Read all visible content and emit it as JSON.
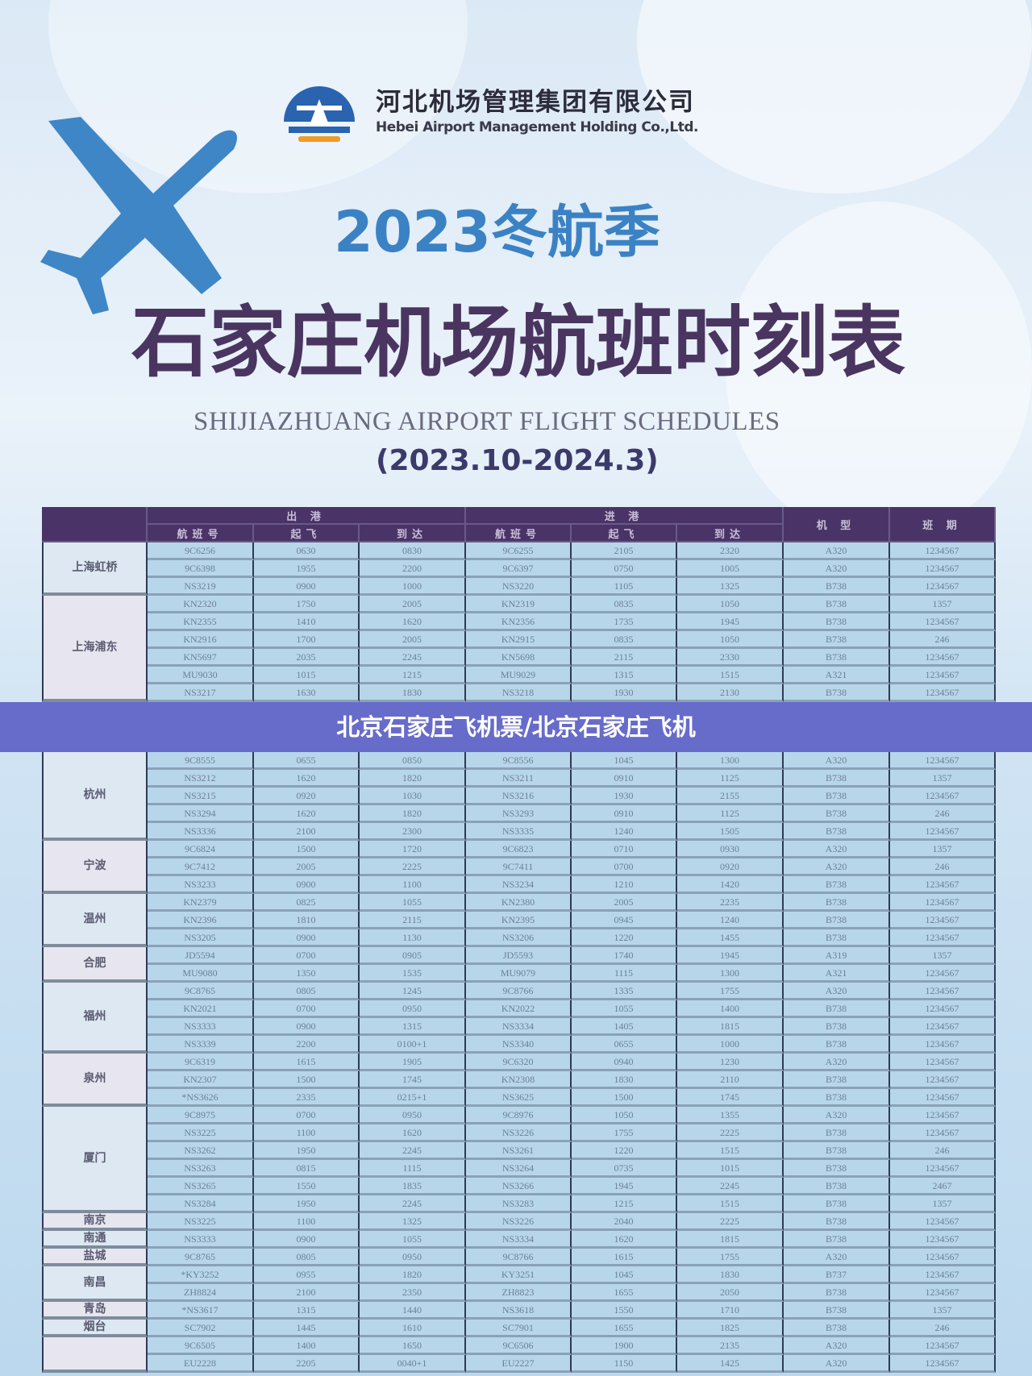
{
  "header": {
    "company_cn": "河北机场管理集团有限公司",
    "company_en": "Hebei Airport Management Holding Co.,Ltd.",
    "season": "2023冬航季",
    "title": "石家庄机场航班时刻表",
    "subtitle": "SHIJIAZHUANG AIRPORT FLIGHT SCHEDULES",
    "period": "(2023.10-2024.3)"
  },
  "banner": "北京石家庄飞机票/北京石家庄飞机",
  "colors": {
    "header": "#4a3366",
    "cell": "#b8d6ea",
    "accent": "#3b82c4",
    "banner": "#585ac4",
    "title": "#4a3560"
  },
  "table": {
    "group_out": "出 港",
    "group_in": "进 港",
    "columns": [
      "航班号",
      "起飞",
      "到达",
      "航班号",
      "起飞",
      "到达"
    ],
    "col_type": "机 型",
    "col_days": "班 期",
    "groups": [
      {
        "city": "上海虹桥",
        "rows": [
          [
            "9C6256",
            "0630",
            "0830",
            "9C6255",
            "2105",
            "2320",
            "A320",
            "1234567"
          ],
          [
            "9C6398",
            "1955",
            "2200",
            "9C6397",
            "0750",
            "1005",
            "A320",
            "1234567"
          ],
          [
            "NS3219",
            "0900",
            "1000",
            "NS3220",
            "1105",
            "1325",
            "B738",
            "1234567"
          ]
        ]
      },
      {
        "city": "上海浦东",
        "rows": [
          [
            "KN2320",
            "1750",
            "2005",
            "KN2319",
            "0835",
            "1050",
            "B738",
            "1357"
          ],
          [
            "KN2355",
            "1410",
            "1620",
            "KN2356",
            "1735",
            "1945",
            "B738",
            "1234567"
          ],
          [
            "KN2916",
            "1700",
            "2005",
            "KN2915",
            "0835",
            "1050",
            "B738",
            "246"
          ],
          [
            "KN5697",
            "2035",
            "2245",
            "KN5698",
            "2115",
            "2330",
            "B738",
            "1234567"
          ],
          [
            "MU9030",
            "1015",
            "1215",
            "MU9029",
            "1315",
            "1515",
            "A321",
            "1234567"
          ],
          [
            "NS3217",
            "1630",
            "1830",
            "NS3218",
            "1930",
            "2130",
            "B738",
            "1234567"
          ]
        ]
      },
      {
        "city": "杭州",
        "rows": [
          [
            "9C8555",
            "0655",
            "0850",
            "9C8556",
            "1045",
            "1300",
            "A320",
            "1234567"
          ],
          [
            "NS3212",
            "1620",
            "1820",
            "NS3211",
            "0910",
            "1125",
            "B738",
            "1357"
          ],
          [
            "NS3215",
            "0920",
            "1030",
            "NS3216",
            "1930",
            "2155",
            "B738",
            "1234567"
          ],
          [
            "NS3294",
            "1620",
            "1820",
            "NS3293",
            "0910",
            "1125",
            "B738",
            "246"
          ],
          [
            "NS3336",
            "2100",
            "2300",
            "NS3335",
            "1240",
            "1505",
            "B738",
            "1234567"
          ]
        ]
      },
      {
        "city": "宁波",
        "rows": [
          [
            "9C6824",
            "1500",
            "1720",
            "9C6823",
            "0710",
            "0930",
            "A320",
            "1357"
          ],
          [
            "9C7412",
            "2005",
            "2225",
            "9C7411",
            "0700",
            "0920",
            "A320",
            "246"
          ],
          [
            "NS3233",
            "0900",
            "1100",
            "NS3234",
            "1210",
            "1420",
            "B738",
            "1234567"
          ]
        ]
      },
      {
        "city": "温州",
        "rows": [
          [
            "KN2379",
            "0825",
            "1055",
            "KN2380",
            "2005",
            "2235",
            "B738",
            "1234567"
          ],
          [
            "KN2396",
            "1810",
            "2115",
            "KN2395",
            "0945",
            "1240",
            "B738",
            "1234567"
          ],
          [
            "NS3205",
            "0900",
            "1130",
            "NS3206",
            "1220",
            "1455",
            "B738",
            "1234567"
          ]
        ]
      },
      {
        "city": "合肥",
        "rows": [
          [
            "JD5594",
            "0700",
            "0905",
            "JD5593",
            "1740",
            "1945",
            "A319",
            "1357"
          ],
          [
            "MU9080",
            "1350",
            "1535",
            "MU9079",
            "1115",
            "1300",
            "A321",
            "1234567"
          ]
        ]
      },
      {
        "city": "福州",
        "rows": [
          [
            "9C8765",
            "0805",
            "1245",
            "9C8766",
            "1335",
            "1755",
            "A320",
            "1234567"
          ],
          [
            "KN2021",
            "0700",
            "0950",
            "KN2022",
            "1055",
            "1400",
            "B738",
            "1234567"
          ],
          [
            "NS3333",
            "0900",
            "1315",
            "NS3334",
            "1405",
            "1815",
            "B738",
            "1234567"
          ],
          [
            "NS3339",
            "2200",
            "0100+1",
            "NS3340",
            "0655",
            "1000",
            "B738",
            "1234567"
          ]
        ]
      },
      {
        "city": "泉州",
        "rows": [
          [
            "9C6319",
            "1615",
            "1905",
            "9C6320",
            "0940",
            "1230",
            "A320",
            "1234567"
          ],
          [
            "KN2307",
            "1500",
            "1745",
            "KN2308",
            "1830",
            "2110",
            "B738",
            "1234567"
          ],
          [
            "*NS3626",
            "2335",
            "0215+1",
            "NS3625",
            "1500",
            "1745",
            "B738",
            "1234567"
          ]
        ]
      },
      {
        "city": "厦门",
        "rows": [
          [
            "9C8975",
            "0700",
            "0950",
            "9C8976",
            "1050",
            "1355",
            "A320",
            "1234567"
          ],
          [
            "NS3225",
            "1100",
            "1620",
            "NS3226",
            "1755",
            "2225",
            "B738",
            "1234567"
          ],
          [
            "NS3262",
            "1950",
            "2245",
            "NS3261",
            "1220",
            "1515",
            "B738",
            "246"
          ],
          [
            "NS3263",
            "0815",
            "1115",
            "NS3264",
            "0735",
            "1015",
            "B738",
            "1234567"
          ],
          [
            "NS3265",
            "1550",
            "1835",
            "NS3266",
            "1945",
            "2245",
            "B738",
            "2467"
          ],
          [
            "NS3284",
            "1950",
            "2245",
            "NS3283",
            "1215",
            "1515",
            "B738",
            "1357"
          ]
        ]
      },
      {
        "city": "南京",
        "rows": [
          [
            "NS3225",
            "1100",
            "1325",
            "NS3226",
            "2040",
            "2225",
            "B738",
            "1234567"
          ]
        ]
      },
      {
        "city": "南通",
        "rows": [
          [
            "NS3333",
            "0900",
            "1055",
            "NS3334",
            "1620",
            "1815",
            "B738",
            "1234567"
          ]
        ]
      },
      {
        "city": "盐城",
        "rows": [
          [
            "9C8765",
            "0805",
            "0950",
            "9C8766",
            "1615",
            "1755",
            "A320",
            "1234567"
          ]
        ]
      },
      {
        "city": "南昌",
        "rows": [
          [
            "*KY3252",
            "0955",
            "1820",
            "KY3251",
            "1045",
            "1830",
            "B737",
            "1234567"
          ],
          [
            "ZH8824",
            "2100",
            "2350",
            "ZH8823",
            "1655",
            "2050",
            "B738",
            "1234567"
          ]
        ]
      },
      {
        "city": "青岛",
        "rows": [
          [
            "*NS3617",
            "1315",
            "1440",
            "NS3618",
            "1550",
            "1710",
            "B738",
            "1357"
          ]
        ]
      },
      {
        "city": "烟台",
        "rows": [
          [
            "SC7902",
            "1445",
            "1610",
            "SC7901",
            "1655",
            "1825",
            "B738",
            "246"
          ]
        ]
      },
      {
        "city": "",
        "rows": [
          [
            "9C6505",
            "1400",
            "1650",
            "9C6506",
            "1900",
            "2135",
            "A320",
            "1234567"
          ],
          [
            "EU2228",
            "2205",
            "0040+1",
            "EU2227",
            "1150",
            "1425",
            "A320",
            "1234567"
          ]
        ]
      }
    ]
  }
}
